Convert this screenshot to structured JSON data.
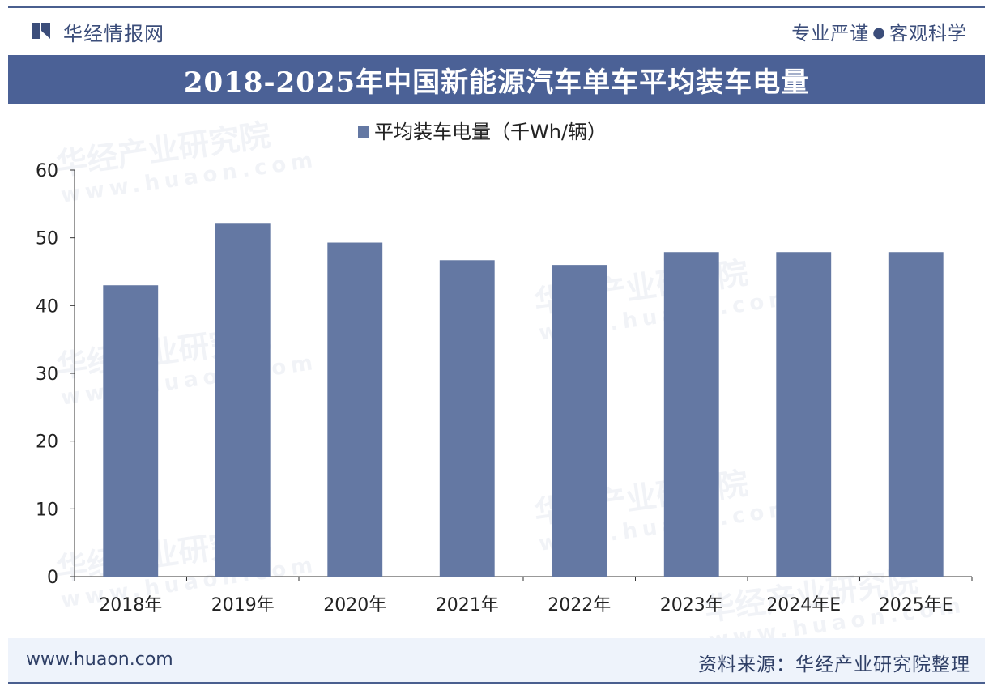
{
  "header": {
    "brand": "华经情报网",
    "slogan_left": "专业严谨",
    "slogan_dot": "●",
    "slogan_right": "客观科学"
  },
  "watermark": {
    "text": "华经产业研究院",
    "url": "www.huaon.com"
  },
  "footer": {
    "url": "www.huaon.com",
    "source": "资料来源：华经产业研究院整理"
  },
  "colors": {
    "bar": "#6478a3",
    "band": "#4b6196",
    "axis": "#333333"
  },
  "chart_data": {
    "type": "bar",
    "title": "2018-2025年中国新能源汽车单车平均装车电量",
    "categories": [
      "2018年",
      "2019年",
      "2020年",
      "2021年",
      "2022年",
      "2023年",
      "2024年E",
      "2025年E"
    ],
    "series": [
      {
        "name": "平均装车电量（千Wh/辆）",
        "values": [
          43,
          52.2,
          49.3,
          46.7,
          46,
          47.9,
          47.9,
          47.9
        ]
      }
    ],
    "ylim": [
      0,
      60
    ],
    "yticks": [
      0,
      10,
      20,
      30,
      40,
      50,
      60
    ],
    "legend_position": "top-center",
    "grid": false,
    "xlabel": "",
    "ylabel": ""
  }
}
